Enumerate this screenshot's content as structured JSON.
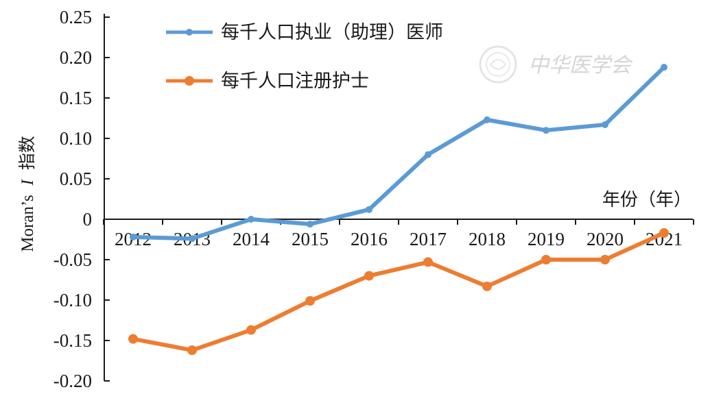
{
  "chart_data": {
    "type": "line",
    "x": [
      "2012",
      "2013",
      "2014",
      "2015",
      "2016",
      "2017",
      "2018",
      "2019",
      "2020",
      "2021"
    ],
    "series": [
      {
        "name": "每千人口执业（助理）医师",
        "color": "#5b9bd5",
        "values": [
          -0.022,
          -0.024,
          0.0,
          -0.006,
          0.012,
          0.08,
          0.123,
          0.11,
          0.117,
          0.188
        ]
      },
      {
        "name": "每千人口注册护士",
        "color": "#ed7d31",
        "values": [
          -0.148,
          -0.162,
          -0.137,
          -0.101,
          -0.07,
          -0.053,
          -0.083,
          -0.05,
          -0.05,
          -0.017
        ]
      }
    ],
    "ylabel": "Moran's I 指数",
    "ylabel_prefix": "Moran’s",
    "ylabel_italic": "I",
    "ylabel_suffix": "指数",
    "xlabel": "年份（年）",
    "ylim": [
      -0.2,
      0.25
    ],
    "yticks": [
      "0.25",
      "0.20",
      "0.15",
      "0.10",
      "0.05",
      "0",
      "-0.05",
      "-0.10",
      "-0.15",
      "-0.20"
    ],
    "ytick_values": [
      0.25,
      0.2,
      0.15,
      0.1,
      0.05,
      0,
      -0.05,
      -0.1,
      -0.15,
      -0.2
    ],
    "legend_position": "top-left",
    "grid": false
  },
  "watermark": {
    "text": "中华医学会",
    "seal_icon": "seal-icon"
  }
}
